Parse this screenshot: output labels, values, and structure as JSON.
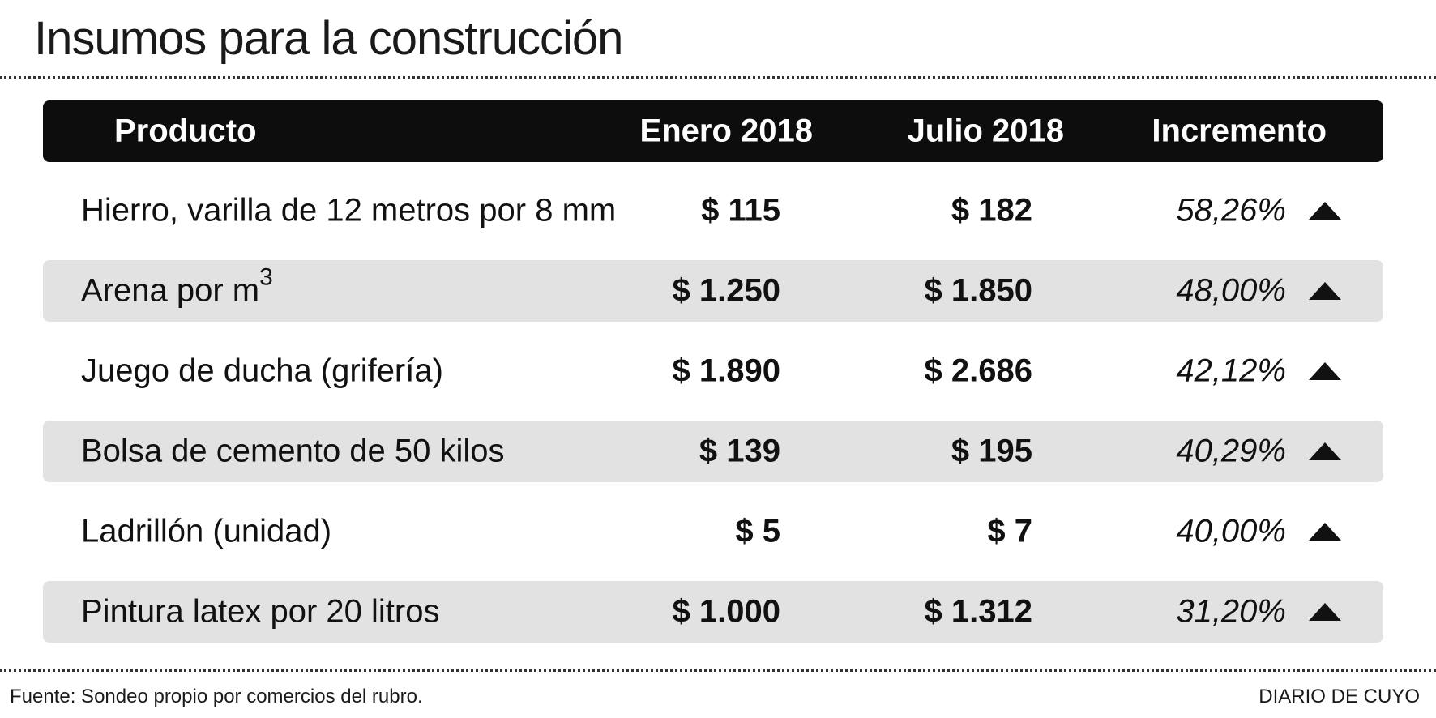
{
  "title": "Insumos para la construcción",
  "chart_data": {
    "type": "table",
    "title": "Insumos para la construcción",
    "columns": [
      "Producto",
      "Enero 2018",
      "Julio 2018",
      "Incremento"
    ],
    "rows": [
      {
        "product": "Hierro, varilla de 12 metros por 8 mm",
        "product_sup": "",
        "jan": "$ 115",
        "jul": "$ 182",
        "increase": "58,26%",
        "jan_value": 115,
        "jul_value": 182,
        "increase_value": 58.26
      },
      {
        "product": "Arena por m",
        "product_sup": "3",
        "jan": "$ 1.250",
        "jul": "$ 1.850",
        "increase": "48,00%",
        "jan_value": 1250,
        "jul_value": 1850,
        "increase_value": 48.0
      },
      {
        "product": "Juego de ducha (grifería)",
        "product_sup": "",
        "jan": "$ 1.890",
        "jul": "$ 2.686",
        "increase": "42,12%",
        "jan_value": 1890,
        "jul_value": 2686,
        "increase_value": 42.12
      },
      {
        "product": "Bolsa de cemento de 50 kilos",
        "product_sup": "",
        "jan": "$ 139",
        "jul": "$ 195",
        "increase": "40,29%",
        "jan_value": 139,
        "jul_value": 195,
        "increase_value": 40.29
      },
      {
        "product": "Ladrillón (unidad)",
        "product_sup": "",
        "jan": "$ 5",
        "jul": "$ 7",
        "increase": "40,00%",
        "jan_value": 5,
        "jul_value": 7,
        "increase_value": 40.0
      },
      {
        "product": "Pintura latex por 20 litros",
        "product_sup": "",
        "jan": "$ 1.000",
        "jul": "$ 1.312",
        "increase": "31,20%",
        "jan_value": 1000,
        "jul_value": 1312,
        "increase_value": 31.2
      }
    ],
    "increase_icon": "triangle-up-icon"
  },
  "source": "Fuente: Sondeo propio por comercios del rubro.",
  "brand": "DIARIO DE CUYO"
}
